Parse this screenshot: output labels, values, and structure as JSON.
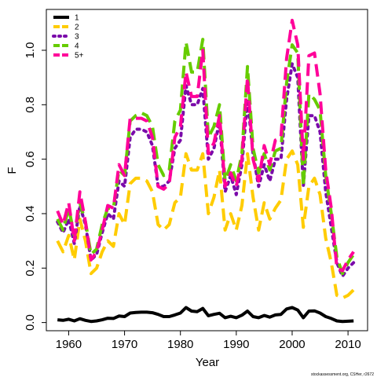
{
  "chart_data": {
    "type": "line",
    "title": "",
    "xlabel": "Year",
    "ylabel": "F",
    "xlim": [
      1956,
      2013.5
    ],
    "ylim": [
      -0.03,
      1.15
    ],
    "x_ticks": [
      1960,
      1970,
      1980,
      1990,
      2000,
      2010
    ],
    "y_ticks": [
      0.0,
      0.2,
      0.4,
      0.6,
      0.8,
      1.0
    ],
    "x_tick_labels": [
      "1960",
      "1970",
      "1980",
      "1990",
      "2000",
      "2010"
    ],
    "y_tick_labels": [
      "0.0",
      "0.2",
      "0.4",
      "0.6",
      "0.8",
      "1.0"
    ],
    "grid": false,
    "legend_position": "top-left",
    "source_note": "stockassessment.org, CSHer, r2672",
    "x": [
      1958,
      1959,
      1960,
      1961,
      1962,
      1963,
      1964,
      1965,
      1966,
      1967,
      1968,
      1969,
      1970,
      1971,
      1972,
      1973,
      1974,
      1975,
      1976,
      1977,
      1978,
      1979,
      1980,
      1981,
      1982,
      1983,
      1984,
      1985,
      1986,
      1987,
      1988,
      1989,
      1990,
      1991,
      1992,
      1993,
      1994,
      1995,
      1996,
      1997,
      1998,
      1999,
      2000,
      2001,
      2002,
      2003,
      2004,
      2005,
      2006,
      2007,
      2008,
      2009,
      2010,
      2011
    ],
    "series": [
      {
        "name": "1",
        "color": "#000000",
        "dash": "solid",
        "values": [
          0.01,
          0.008,
          0.012,
          0.006,
          0.014,
          0.008,
          0.004,
          0.006,
          0.01,
          0.016,
          0.015,
          0.024,
          0.022,
          0.035,
          0.037,
          0.038,
          0.038,
          0.036,
          0.03,
          0.022,
          0.022,
          0.028,
          0.035,
          0.055,
          0.042,
          0.04,
          0.052,
          0.025,
          0.03,
          0.034,
          0.018,
          0.023,
          0.018,
          0.027,
          0.042,
          0.022,
          0.018,
          0.026,
          0.02,
          0.028,
          0.03,
          0.05,
          0.055,
          0.046,
          0.018,
          0.042,
          0.043,
          0.035,
          0.022,
          0.015,
          0.006,
          0.004,
          0.005,
          0.006
        ]
      },
      {
        "name": "2",
        "color": "#ffcc00",
        "dash": "dashed",
        "values": [
          0.3,
          0.26,
          0.32,
          0.23,
          0.38,
          0.3,
          0.18,
          0.2,
          0.26,
          0.3,
          0.28,
          0.4,
          0.36,
          0.51,
          0.53,
          0.53,
          0.52,
          0.48,
          0.36,
          0.34,
          0.36,
          0.44,
          0.46,
          0.62,
          0.56,
          0.56,
          0.62,
          0.4,
          0.46,
          0.56,
          0.34,
          0.4,
          0.34,
          0.43,
          0.62,
          0.46,
          0.34,
          0.44,
          0.38,
          0.42,
          0.45,
          0.6,
          0.63,
          0.58,
          0.35,
          0.5,
          0.53,
          0.47,
          0.31,
          0.22,
          0.1,
          0.09,
          0.1,
          0.12
        ]
      },
      {
        "name": "3",
        "color": "#7a0aaa",
        "dash": "dotted",
        "values": [
          0.37,
          0.33,
          0.38,
          0.29,
          0.43,
          0.36,
          0.23,
          0.25,
          0.33,
          0.4,
          0.38,
          0.52,
          0.5,
          0.68,
          0.71,
          0.71,
          0.7,
          0.65,
          0.5,
          0.5,
          0.52,
          0.64,
          0.67,
          0.87,
          0.8,
          0.8,
          0.86,
          0.6,
          0.64,
          0.74,
          0.48,
          0.54,
          0.47,
          0.58,
          0.82,
          0.62,
          0.5,
          0.58,
          0.52,
          0.6,
          0.6,
          0.82,
          0.95,
          0.9,
          0.5,
          0.76,
          0.76,
          0.7,
          0.48,
          0.35,
          0.22,
          0.17,
          0.2,
          0.22
        ]
      },
      {
        "name": "4",
        "color": "#66cc00",
        "dash": "dashed",
        "values": [
          0.38,
          0.34,
          0.42,
          0.32,
          0.44,
          0.37,
          0.25,
          0.27,
          0.36,
          0.42,
          0.42,
          0.56,
          0.54,
          0.74,
          0.76,
          0.77,
          0.76,
          0.72,
          0.58,
          0.54,
          0.56,
          0.74,
          0.78,
          1.03,
          0.92,
          0.92,
          1.04,
          0.68,
          0.72,
          0.8,
          0.52,
          0.58,
          0.52,
          0.62,
          0.94,
          0.64,
          0.55,
          0.62,
          0.56,
          0.63,
          0.64,
          0.88,
          1.02,
          0.99,
          0.5,
          0.84,
          0.82,
          0.78,
          0.54,
          0.4,
          0.24,
          0.18,
          0.22,
          0.25
        ]
      },
      {
        "name": "5+",
        "color": "#ff0099",
        "dash": "dashed",
        "values": [
          0.41,
          0.36,
          0.44,
          0.3,
          0.48,
          0.37,
          0.23,
          0.26,
          0.34,
          0.43,
          0.42,
          0.58,
          0.54,
          0.75,
          0.75,
          0.75,
          0.74,
          0.68,
          0.5,
          0.49,
          0.51,
          0.68,
          0.72,
          0.92,
          0.83,
          0.83,
          1.0,
          0.62,
          0.66,
          0.76,
          0.5,
          0.55,
          0.5,
          0.6,
          0.9,
          0.6,
          0.52,
          0.65,
          0.58,
          0.67,
          0.68,
          0.97,
          1.11,
          1.02,
          0.6,
          0.98,
          0.99,
          0.84,
          0.56,
          0.42,
          0.2,
          0.19,
          0.23,
          0.26
        ]
      }
    ]
  }
}
